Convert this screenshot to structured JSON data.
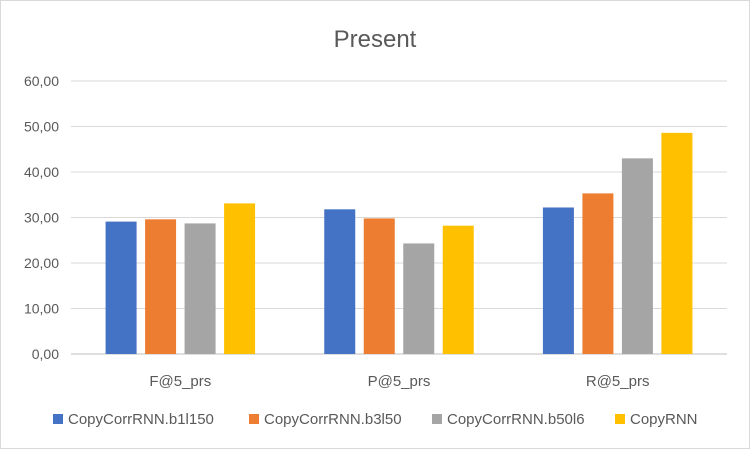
{
  "chart_data": {
    "type": "bar",
    "title": "Present",
    "categories": [
      "F@5_prs",
      "P@5_prs",
      "R@5_prs"
    ],
    "series": [
      {
        "name": "CopyCorrRNN.b1l150",
        "color": "#4472c4",
        "values": [
          29.1,
          31.8,
          32.2
        ]
      },
      {
        "name": "CopyCorrRNN.b3l50",
        "color": "#ed7d31",
        "values": [
          29.6,
          29.8,
          35.3
        ]
      },
      {
        "name": "CopyCorrRNN.b50l6",
        "color": "#a5a5a5",
        "values": [
          28.7,
          24.3,
          43.0
        ]
      },
      {
        "name": "CopyRNN",
        "color": "#ffc000",
        "values": [
          33.1,
          28.2,
          48.6
        ]
      }
    ],
    "ylim": [
      0,
      60
    ],
    "yticks": [
      "0,00",
      "10,00",
      "20,00",
      "30,00",
      "40,00",
      "50,00",
      "60,00"
    ],
    "ytick_values": [
      0,
      10,
      20,
      30,
      40,
      50,
      60
    ],
    "grid": true,
    "legend_position": "bottom"
  }
}
